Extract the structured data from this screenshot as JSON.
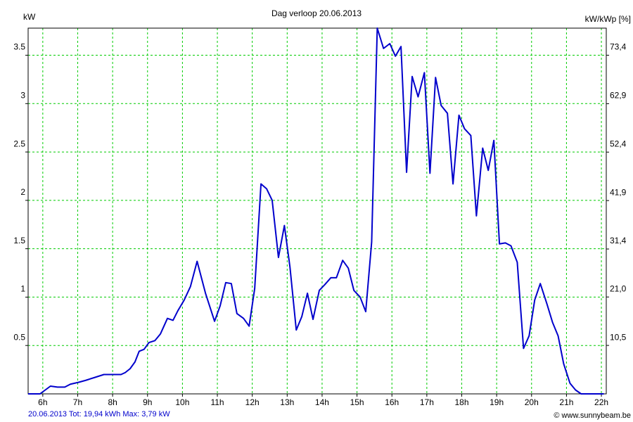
{
  "chart_data": {
    "type": "line",
    "title": "Dag  verloop 20.06.2013",
    "y_label": "kW",
    "y2_label": "kW/kWp [%]",
    "footer": "20.06.2013 Tot: 19,94 kWh Max: 3,79 kW",
    "credit": "© www.sunnybeam.be",
    "xlim": [
      5.58,
      22.14
    ],
    "xticks": [
      {
        "value": 6,
        "label": "6h"
      },
      {
        "value": 7,
        "label": "7h"
      },
      {
        "value": 8,
        "label": "8h"
      },
      {
        "value": 9,
        "label": "9h"
      },
      {
        "value": 10,
        "label": "10h"
      },
      {
        "value": 11,
        "label": "11h"
      },
      {
        "value": 12,
        "label": "12h"
      },
      {
        "value": 13,
        "label": "13h"
      },
      {
        "value": 14,
        "label": "14h"
      },
      {
        "value": 15,
        "label": "15h"
      },
      {
        "value": 16,
        "label": "16h"
      },
      {
        "value": 17,
        "label": "17h"
      },
      {
        "value": 18,
        "label": "18h"
      },
      {
        "value": 19,
        "label": "19h"
      },
      {
        "value": 20,
        "label": "20h"
      },
      {
        "value": 21,
        "label": "21h"
      },
      {
        "value": 22,
        "label": "22h"
      }
    ],
    "ylim": [
      0,
      3.78
    ],
    "yticks": [
      0.5,
      1,
      1.5,
      2,
      2.5,
      3,
      3.5
    ],
    "y2lim": [
      0,
      79.27
    ],
    "y2ticks": [
      {
        "value": 10.5,
        "label": "10,5"
      },
      {
        "value": 21.0,
        "label": "21,0"
      },
      {
        "value": 31.4,
        "label": "31,4"
      },
      {
        "value": 41.9,
        "label": "41,9"
      },
      {
        "value": 52.4,
        "label": "52,4"
      },
      {
        "value": 62.9,
        "label": "62,9"
      },
      {
        "value": 73.4,
        "label": "73,4"
      }
    ],
    "grid": true,
    "x": [
      5.58,
      5.92,
      6.22,
      6.42,
      6.63,
      6.79,
      7.03,
      7.23,
      7.49,
      7.75,
      7.9,
      8.1,
      8.24,
      8.36,
      8.5,
      8.64,
      8.76,
      8.9,
      9.04,
      9.21,
      9.37,
      9.57,
      9.73,
      9.87,
      10.05,
      10.23,
      10.42,
      10.66,
      10.92,
      11.08,
      11.24,
      11.4,
      11.56,
      11.75,
      11.91,
      12.07,
      12.25,
      12.41,
      12.57,
      12.75,
      12.92,
      13.08,
      13.26,
      13.42,
      13.58,
      13.74,
      13.92,
      14.08,
      14.25,
      14.41,
      14.59,
      14.75,
      14.91,
      15.09,
      15.25,
      15.42,
      15.58,
      15.76,
      15.94,
      16.1,
      16.26,
      16.42,
      16.58,
      16.75,
      16.93,
      17.09,
      17.25,
      17.41,
      17.59,
      17.75,
      17.92,
      18.08,
      18.26,
      18.42,
      18.6,
      18.76,
      18.92,
      19.08,
      19.25,
      19.41,
      19.59,
      19.77,
      19.93,
      20.09,
      20.25,
      20.44,
      20.6,
      20.76,
      20.92,
      21.1,
      21.26,
      21.42,
      22.07
    ],
    "series": [
      {
        "name": "kW",
        "color": "#0000cc",
        "values": [
          0,
          0,
          0.08,
          0.07,
          0.07,
          0.1,
          0.12,
          0.14,
          0.17,
          0.2,
          0.2,
          0.2,
          0.2,
          0.22,
          0.26,
          0.33,
          0.44,
          0.46,
          0.53,
          0.55,
          0.62,
          0.78,
          0.76,
          0.86,
          0.97,
          1.11,
          1.37,
          1.04,
          0.75,
          0.91,
          1.15,
          1.14,
          0.83,
          0.78,
          0.7,
          1.09,
          2.17,
          2.12,
          2.0,
          1.41,
          1.74,
          1.31,
          0.66,
          0.8,
          1.04,
          0.77,
          1.07,
          1.13,
          1.2,
          1.2,
          1.38,
          1.3,
          1.07,
          1.0,
          0.85,
          1.57,
          3.78,
          3.57,
          3.62,
          3.49,
          3.59,
          2.29,
          3.28,
          3.07,
          3.32,
          2.28,
          3.27,
          2.98,
          2.9,
          2.17,
          2.88,
          2.74,
          2.67,
          1.84,
          2.54,
          2.31,
          2.62,
          1.55,
          1.56,
          1.53,
          1.36,
          0.47,
          0.6,
          0.97,
          1.14,
          0.93,
          0.74,
          0.6,
          0.31,
          0.11,
          0.04,
          0,
          0
        ]
      }
    ]
  }
}
